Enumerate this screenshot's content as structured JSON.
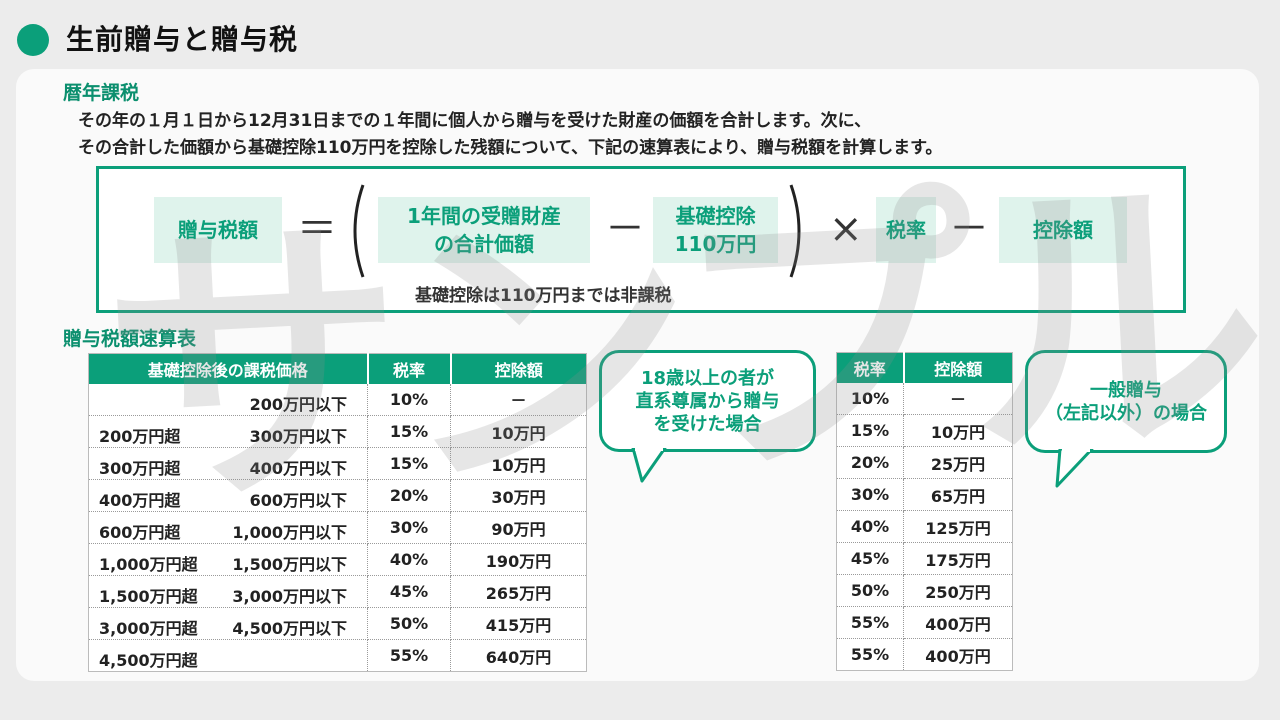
{
  "page": {
    "title": "生前贈与と贈与税"
  },
  "watermark": "サンプル",
  "section1": {
    "title": "暦年課税",
    "intro_line1": "その年の１月１日から12月31日までの１年間に個人から贈与を受けた財産の価額を合計します。次に、",
    "intro_line2": "その合計した価額から基礎控除110万円を控除した残額について、下記の速算表により、贈与税額を計算します。"
  },
  "formula": {
    "tax_amount": "贈与税額",
    "equals": "＝",
    "total_line1": "1年間の受贈財産",
    "total_line2": "の合計価額",
    "minus": "－",
    "deduction_line1": "基礎控除",
    "deduction_line2": "110万円",
    "times": "×",
    "rate": "税率",
    "minus2": "－",
    "deduction_amount": "控除額",
    "note": "基礎控除は110万円までは非課税"
  },
  "section2": {
    "title": "贈与税額速算表"
  },
  "main_table": {
    "headers": [
      "基礎控除後の課税価格",
      "税率",
      "控除額"
    ],
    "rows": [
      {
        "from": "",
        "to": "200万円以下",
        "rate": "10%",
        "deduction": "－"
      },
      {
        "from": "200万円超",
        "to": "300万円以下",
        "rate": "15%",
        "deduction": "10万円"
      },
      {
        "from": "300万円超",
        "to": "400万円以下",
        "rate": "15%",
        "deduction": "10万円"
      },
      {
        "from": "400万円超",
        "to": "600万円以下",
        "rate": "20%",
        "deduction": "30万円"
      },
      {
        "from": "600万円超",
        "to": "1,000万円以下",
        "rate": "30%",
        "deduction": "90万円"
      },
      {
        "from": "1,000万円超",
        "to": "1,500万円以下",
        "rate": "40%",
        "deduction": "190万円"
      },
      {
        "from": "1,500万円超",
        "to": "3,000万円以下",
        "rate": "45%",
        "deduction": "265万円"
      },
      {
        "from": "3,000万円超",
        "to": "4,500万円以下",
        "rate": "50%",
        "deduction": "415万円"
      },
      {
        "from": "4,500万円超",
        "to": "",
        "rate": "55%",
        "deduction": "640万円"
      }
    ]
  },
  "bubble_left": {
    "line1": "18歳以上の者が",
    "line2": "直系尊属から贈与",
    "line3": "を受けた場合"
  },
  "side_table": {
    "headers": [
      "税率",
      "控除額"
    ],
    "rows": [
      {
        "rate": "10%",
        "deduction": "－"
      },
      {
        "rate": "15%",
        "deduction": "10万円"
      },
      {
        "rate": "20%",
        "deduction": "25万円"
      },
      {
        "rate": "30%",
        "deduction": "65万円"
      },
      {
        "rate": "40%",
        "deduction": "125万円"
      },
      {
        "rate": "45%",
        "deduction": "175万円"
      },
      {
        "rate": "50%",
        "deduction": "250万円"
      },
      {
        "rate": "55%",
        "deduction": "400万円"
      },
      {
        "rate": "55%",
        "deduction": "400万円"
      }
    ]
  },
  "bubble_right": {
    "line1": "一般贈与",
    "line2": "（左記以外）の場合"
  },
  "colors": {
    "accent": "#0b9f7a",
    "accent_light": "#dff3ec"
  }
}
